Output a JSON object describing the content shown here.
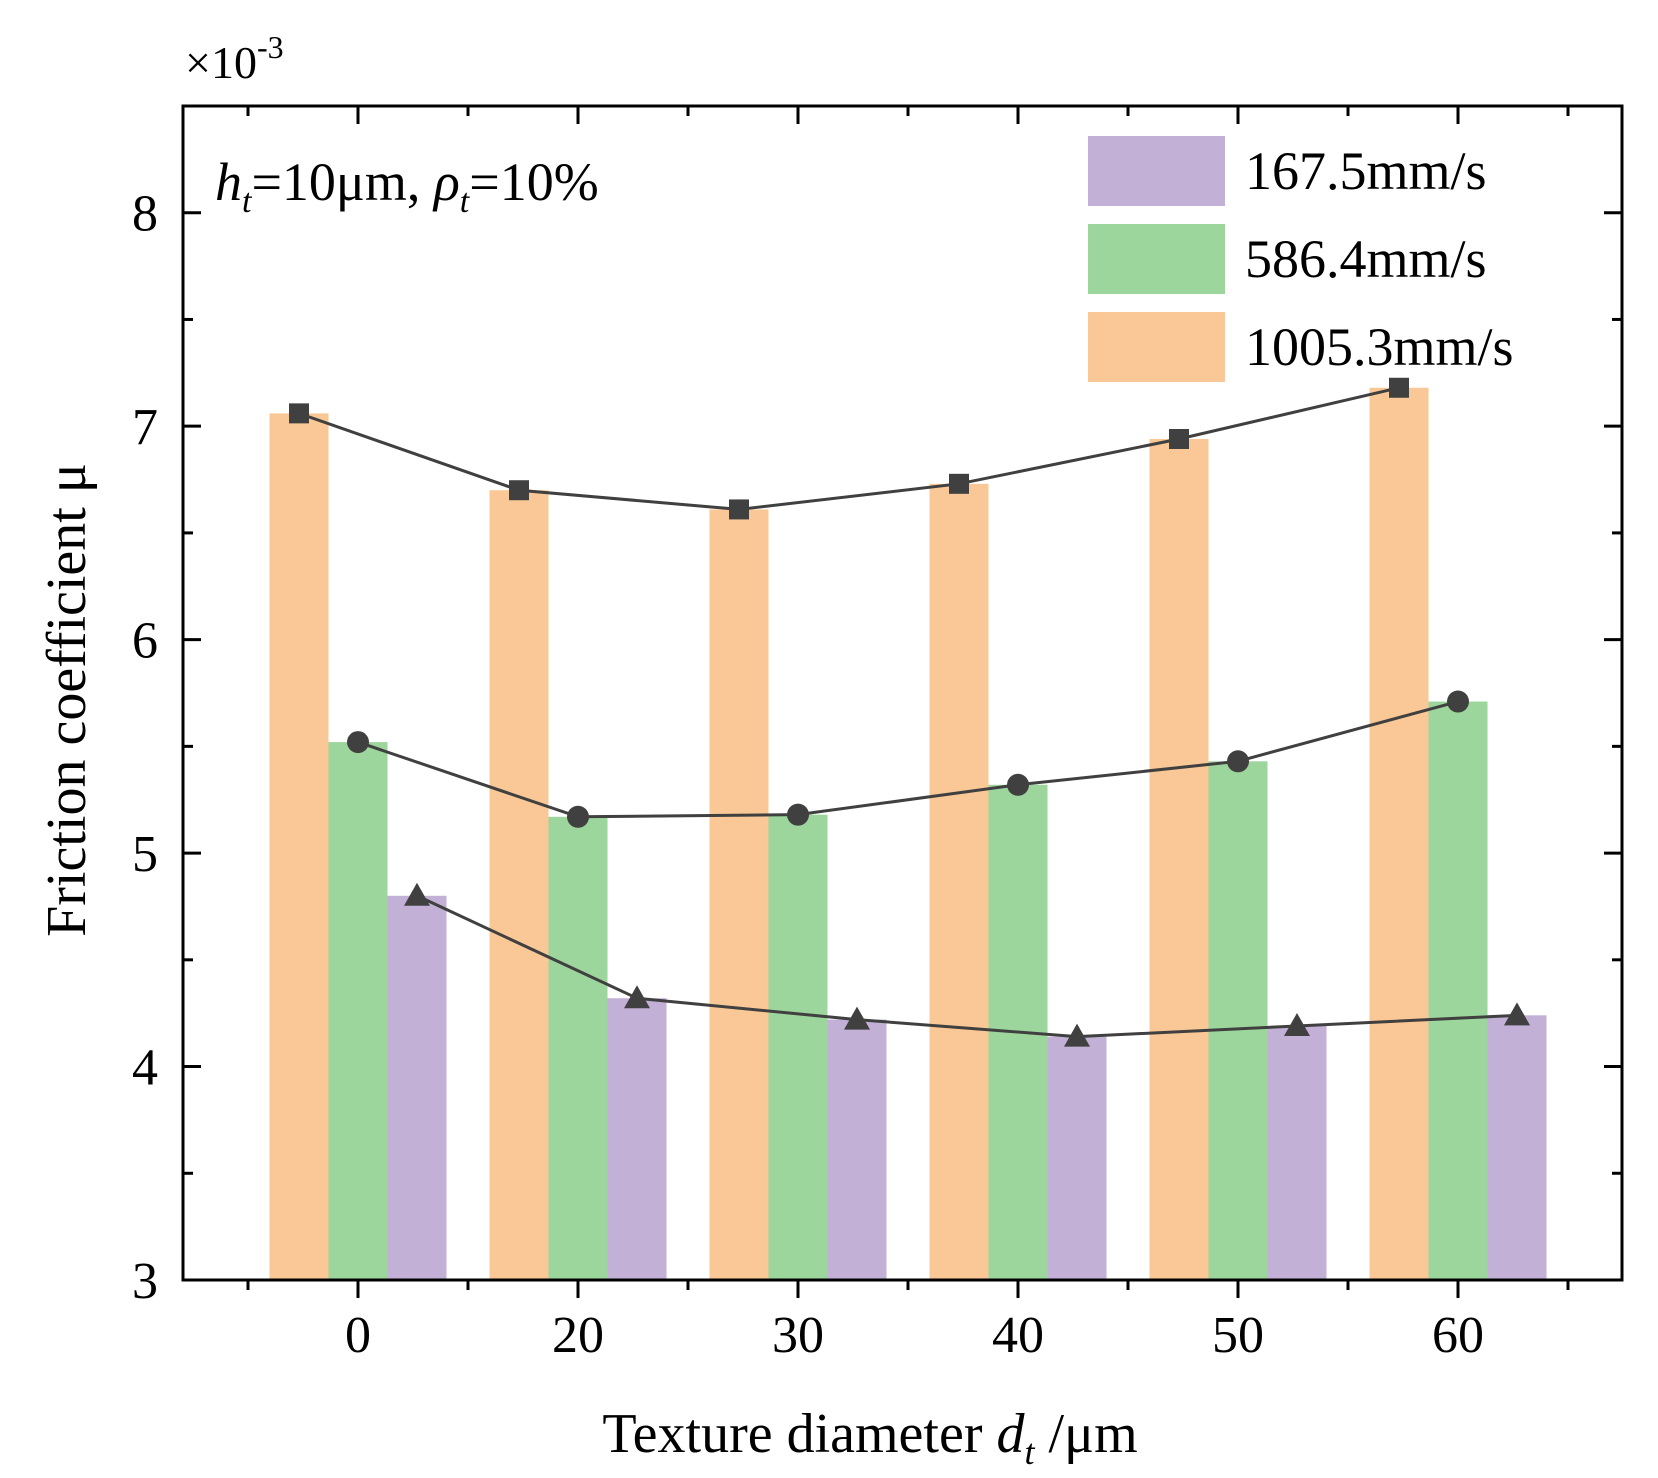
{
  "chart_data": {
    "type": "bar",
    "exponent_label": "×10",
    "exponent_power": "-3",
    "annotation": {
      "h": "h",
      "h_sub": "t",
      "h_rest": "=10μm, ",
      "rho": "ρ",
      "rho_sub": "t",
      "rho_rest": "=10%"
    },
    "ylabel": "Friction coefficient μ",
    "xlabel_main": "Texture diameter ",
    "xlabel_var": "d",
    "xlabel_sub": "t",
    "xlabel_unit": " /μm",
    "ylim": [
      3,
      8.5
    ],
    "yticks": [
      "3",
      "4",
      "5",
      "6",
      "7",
      "8"
    ],
    "categories": [
      "0",
      "20",
      "30",
      "40",
      "50",
      "60"
    ],
    "series": [
      {
        "name": "1005.3mm/s",
        "color": "#f9c896",
        "marker": "square",
        "values": [
          7.06,
          6.7,
          6.61,
          6.73,
          6.94,
          7.18
        ]
      },
      {
        "name": "586.4mm/s",
        "color": "#9cd69c",
        "marker": "circle",
        "values": [
          5.52,
          5.17,
          5.18,
          5.32,
          5.43,
          5.71
        ]
      },
      {
        "name": "167.5mm/s",
        "color": "#c2b0d6",
        "marker": "triangle",
        "values": [
          4.8,
          4.32,
          4.22,
          4.14,
          4.19,
          4.24
        ]
      }
    ],
    "legend": {
      "position": "top-right",
      "order": [
        "167.5mm/s",
        "586.4mm/s",
        "1005.3mm/s"
      ]
    },
    "line_color": "#404040"
  }
}
